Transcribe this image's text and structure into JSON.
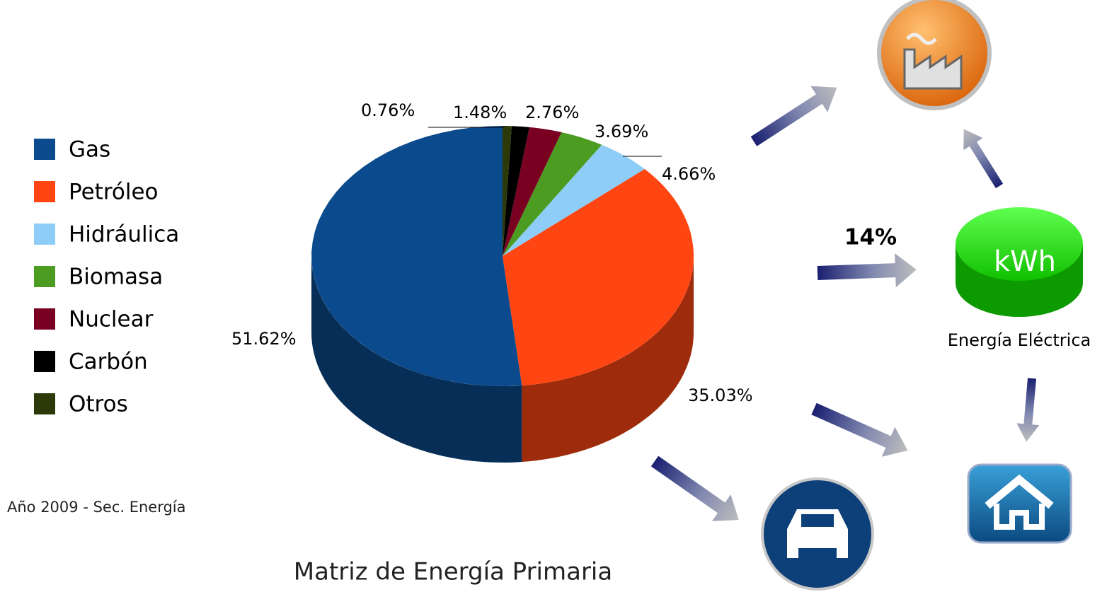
{
  "chart_data": {
    "type": "pie",
    "title": "Matriz de Energía Primaria",
    "source": "Año 2009 - Sec. Energía",
    "categories": [
      "Gas",
      "Petróleo",
      "Hidráulica",
      "Biomasa",
      "Nuclear",
      "Carbón",
      "Otros"
    ],
    "values": [
      51.62,
      35.03,
      4.66,
      3.69,
      2.76,
      1.48,
      0.76
    ],
    "value_labels": [
      "51.62%",
      "35.03%",
      "4.66%",
      "3.69%",
      "2.76%",
      "1.48%",
      "0.76%"
    ],
    "colors": [
      "#0b4a8c",
      "#ff4512",
      "#8ecdf8",
      "#4c9c22",
      "#7a0022",
      "#000000",
      "#2c3a0a"
    ],
    "legend": "left"
  },
  "diagram": {
    "annotation": "14%",
    "node_label": "kWh",
    "node_caption": "Energía Eléctrica"
  }
}
